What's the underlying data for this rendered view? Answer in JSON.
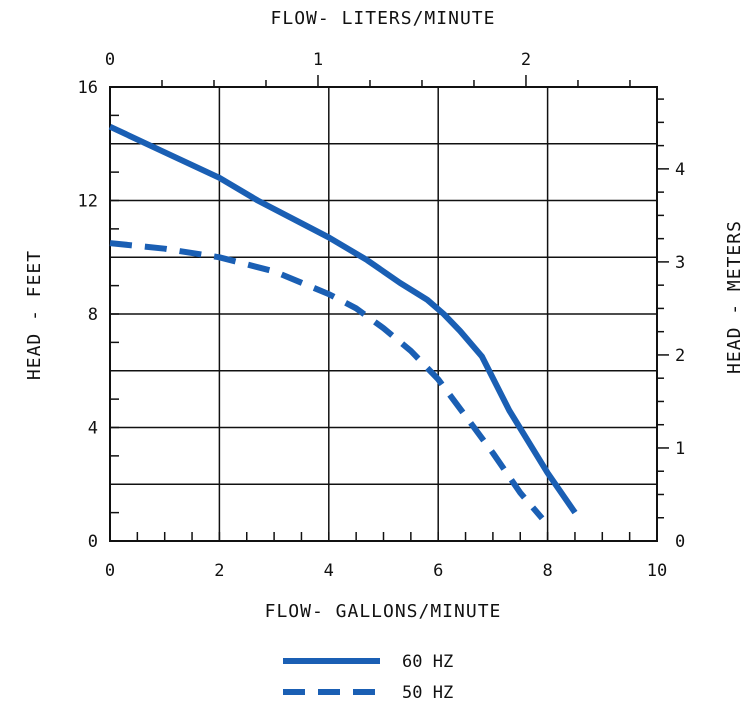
{
  "chart_data": {
    "type": "line",
    "title": "",
    "xlabel": "FLOW- GALLONS/MINUTE",
    "ylabel": "HEAD - FEET",
    "x2label": "FLOW- LITERS/MINUTE",
    "y2label": "HEAD - METERS",
    "xlim": [
      0,
      10
    ],
    "ylim": [
      0,
      16
    ],
    "x2lim": [
      0,
      2.63
    ],
    "y2lim": [
      0,
      4.88
    ],
    "x_ticks": [
      0,
      2,
      4,
      6,
      8,
      10
    ],
    "y_ticks": [
      0,
      4,
      8,
      12,
      16
    ],
    "x2_ticks": [
      0,
      1,
      2
    ],
    "y2_ticks": [
      0,
      1,
      2,
      3,
      4
    ],
    "grid": true,
    "legend_position": "bottom-center",
    "series": [
      {
        "name": "60 HZ",
        "style": "solid",
        "color": "#1a5fb4",
        "x": [
          0,
          1,
          2,
          2.7,
          3.5,
          4,
          4.7,
          5.3,
          5.8,
          6.1,
          6.4,
          6.8,
          7.3,
          8,
          8.5
        ],
        "y": [
          14.6,
          13.7,
          12.8,
          12.0,
          11.2,
          10.7,
          9.9,
          9.1,
          8.5,
          8.0,
          7.4,
          6.5,
          4.6,
          2.4,
          1.0
        ]
      },
      {
        "name": "50 HZ",
        "style": "dashed",
        "color": "#1a5fb4",
        "x": [
          0,
          1,
          2,
          3,
          4,
          4.5,
          5,
          5.5,
          6,
          6.5,
          7,
          7.5,
          7.9
        ],
        "y": [
          10.5,
          10.3,
          10.0,
          9.5,
          8.7,
          8.2,
          7.5,
          6.7,
          5.7,
          4.4,
          3.1,
          1.7,
          0.8
        ]
      }
    ]
  }
}
